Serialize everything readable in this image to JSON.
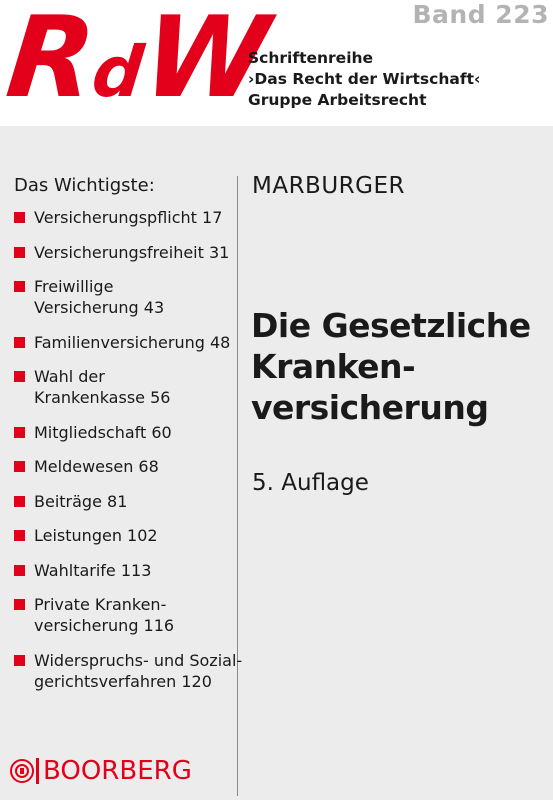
{
  "header": {
    "logo": {
      "part1": "R",
      "part2": "d",
      "part3": "W"
    },
    "series": {
      "line1": "Schriftenreihe",
      "line2": "›Das Recht der Wirtschaft‹",
      "line3": "Gruppe Arbeitsrecht"
    },
    "band": "Band 223"
  },
  "toc": {
    "heading": "Das Wichtigste:",
    "items": [
      {
        "line1": "Versicherungspflicht  17",
        "line2": ""
      },
      {
        "line1": "Versicherungsfreiheit  31",
        "line2": ""
      },
      {
        "line1": "Freiwillige",
        "line2": "Versicherung  43"
      },
      {
        "line1": "Familienversicherung  48",
        "line2": ""
      },
      {
        "line1": "Wahl der",
        "line2": "Krankenkasse  56"
      },
      {
        "line1": "Mitgliedschaft  60",
        "line2": ""
      },
      {
        "line1": "Meldewesen  68",
        "line2": ""
      },
      {
        "line1": "Beiträge  81",
        "line2": ""
      },
      {
        "line1": "Leistungen  102",
        "line2": ""
      },
      {
        "line1": "Wahltarife  113",
        "line2": ""
      },
      {
        "line1": "Private Kranken-",
        "line2": "versicherung  116"
      },
      {
        "line1": "Widerspruchs- und Sozial-",
        "line2": "gerichtsverfahren  120"
      }
    ]
  },
  "main": {
    "author": "MARBURGER",
    "title": {
      "line1": "Die Gesetzliche",
      "line2": "Kranken-",
      "line3": "versicherung"
    },
    "edition": "5. Auflage"
  },
  "publisher": {
    "name": "BOORBERG"
  },
  "colors": {
    "accent": "#e2001a",
    "panel": "#ececec",
    "band": "#b3b3b3"
  }
}
